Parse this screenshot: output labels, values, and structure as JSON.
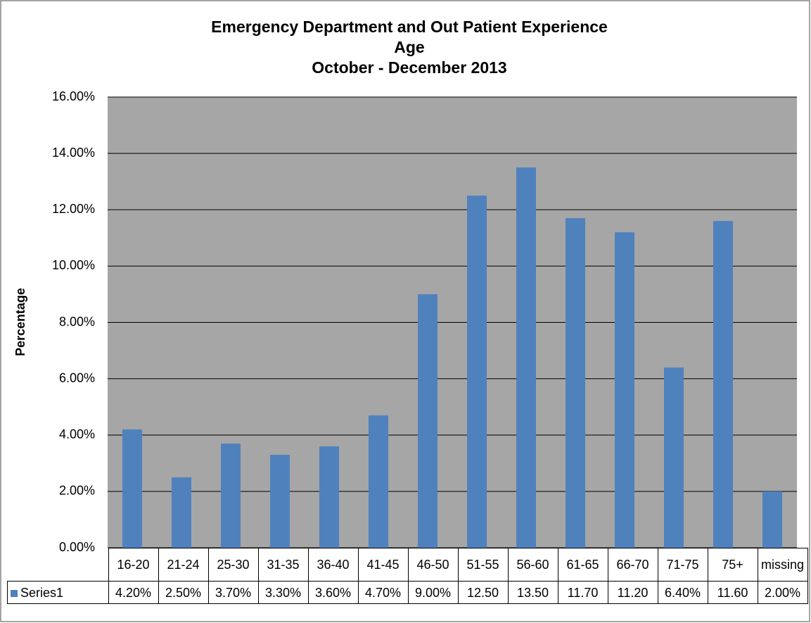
{
  "chart_data": {
    "type": "bar",
    "title": [
      "Emergency Department and Out Patient Experience",
      "Age",
      "October - December 2013"
    ],
    "y_label": "Percentage",
    "categories": [
      "16-20",
      "21-24",
      "25-30",
      "31-35",
      "36-40",
      "41-45",
      "46-50",
      "51-55",
      "56-60",
      "61-65",
      "66-70",
      "71-75",
      "75+",
      "missing"
    ],
    "series": [
      {
        "name": "Series1",
        "color": "#4f81bd",
        "values": [
          4.2,
          2.5,
          3.7,
          3.3,
          3.6,
          4.7,
          9.0,
          12.5,
          13.5,
          11.7,
          11.2,
          6.4,
          11.6,
          2.0
        ],
        "value_labels": [
          "4.20%",
          "2.50%",
          "3.70%",
          "3.30%",
          "3.60%",
          "4.70%",
          "9.00%",
          "12.50",
          "13.50",
          "11.70",
          "11.20",
          "6.40%",
          "11.60",
          "2.00%"
        ]
      }
    ],
    "ylim": [
      0,
      16
    ],
    "yticks": [
      {
        "value": 0,
        "label": "0.00%"
      },
      {
        "value": 2,
        "label": "2.00%"
      },
      {
        "value": 4,
        "label": "4.00%"
      },
      {
        "value": 6,
        "label": "6.00%"
      },
      {
        "value": 8,
        "label": "8.00%"
      },
      {
        "value": 10,
        "label": "10.00%"
      },
      {
        "value": 12,
        "label": "12.00%"
      },
      {
        "value": 14,
        "label": "14.00%"
      },
      {
        "value": 16,
        "label": "16.00%"
      }
    ],
    "grid": true,
    "plot_background": "#a6a6a6"
  }
}
